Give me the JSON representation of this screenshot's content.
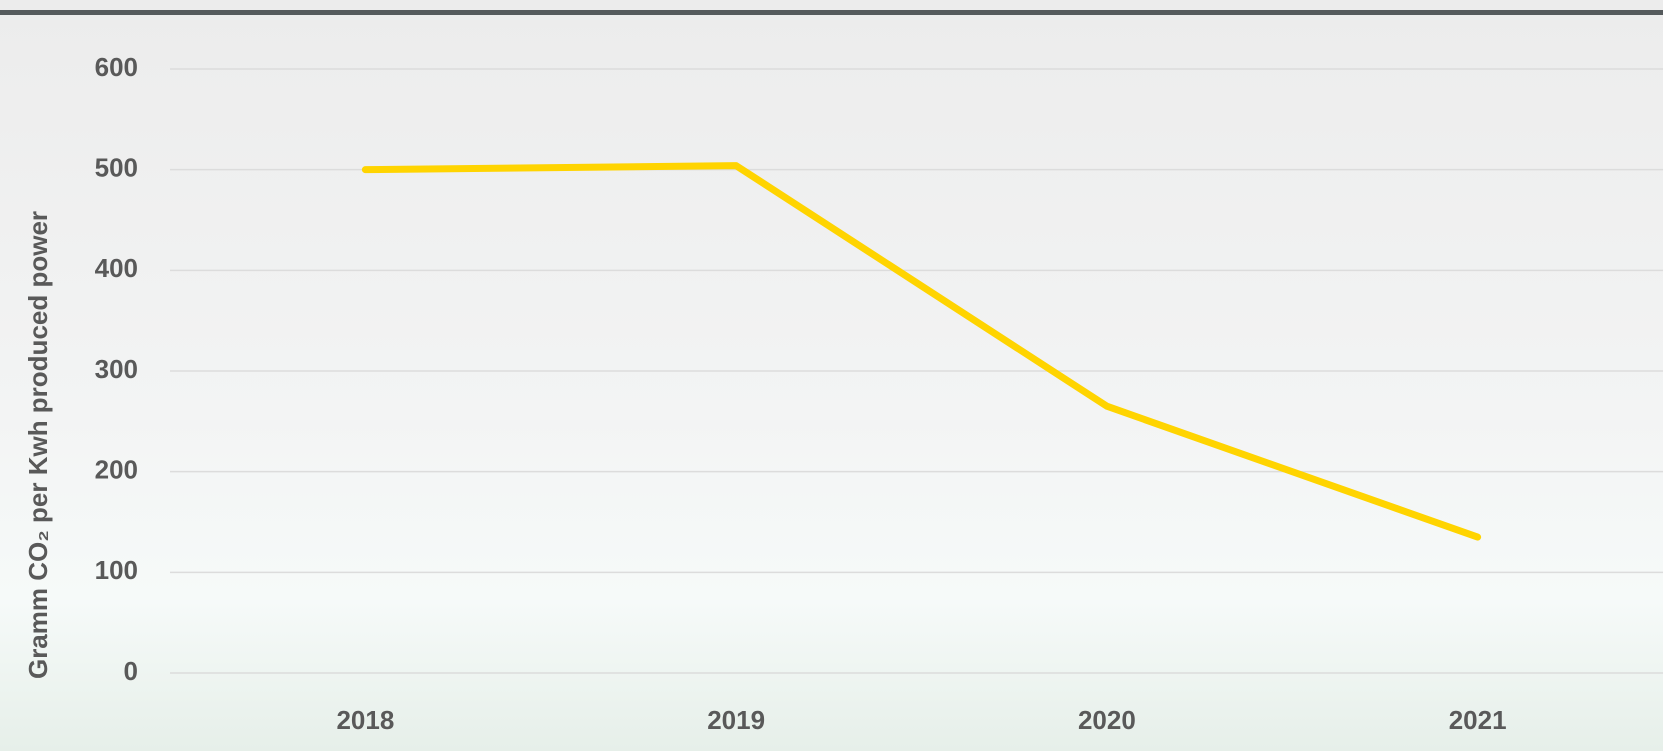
{
  "chart_data": {
    "type": "line",
    "y_label": "Gramm CO₂ per Kwh produced power",
    "categories": [
      "2018",
      "2019",
      "2020",
      "2021"
    ],
    "series": [
      {
        "color": "#ffd400",
        "values": [
          500,
          504,
          265,
          135
        ]
      }
    ],
    "ylim": [
      0,
      600
    ],
    "yticks": [
      0,
      100,
      200,
      300,
      400,
      500,
      600
    ],
    "grid": true
  }
}
